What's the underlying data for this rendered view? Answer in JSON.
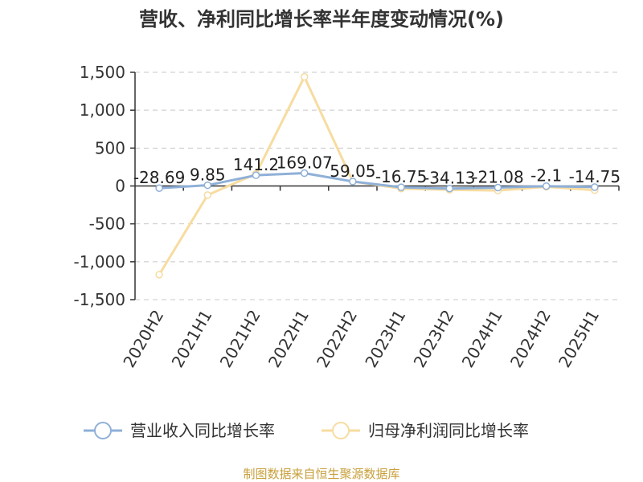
{
  "chart_data": {
    "type": "line",
    "title": "营收、净利同比增长率半年度变动情况(%)",
    "categories": [
      "2020H2",
      "2021H1",
      "2021H2",
      "2022H1",
      "2022H2",
      "2023H1",
      "2023H2",
      "2024H1",
      "2024H2",
      "2025H1"
    ],
    "ylim": [
      -1500,
      1500
    ],
    "yticks": [
      1500,
      1000,
      500,
      0,
      -500,
      -1000,
      -1500
    ],
    "ytick_labels": [
      "1,500",
      "1,000",
      "500",
      "0",
      "-500",
      "-1,000",
      "-1,500"
    ],
    "grid": true,
    "legend_position": "bottom",
    "series": [
      {
        "name": "营业收入同比增长率",
        "color": "#8fb0d8",
        "values": [
          -28.69,
          9.85,
          141.2,
          169.07,
          59.05,
          -16.75,
          -34.13,
          -21.08,
          -2.1,
          -14.75
        ],
        "labels": [
          "-28.69",
          "9.85",
          "141.2",
          "169.07",
          "59.05",
          "-16.75",
          "-34.13",
          "-21.08",
          "-2.1",
          "-14.75"
        ]
      },
      {
        "name": "归母净利润同比增长率",
        "color": "#f7dca0",
        "values": [
          -1170,
          -120,
          160,
          1440,
          60,
          -35,
          -50,
          -60,
          -10,
          -55
        ]
      }
    ],
    "source": "制图数据来自恒生聚源数据库"
  }
}
